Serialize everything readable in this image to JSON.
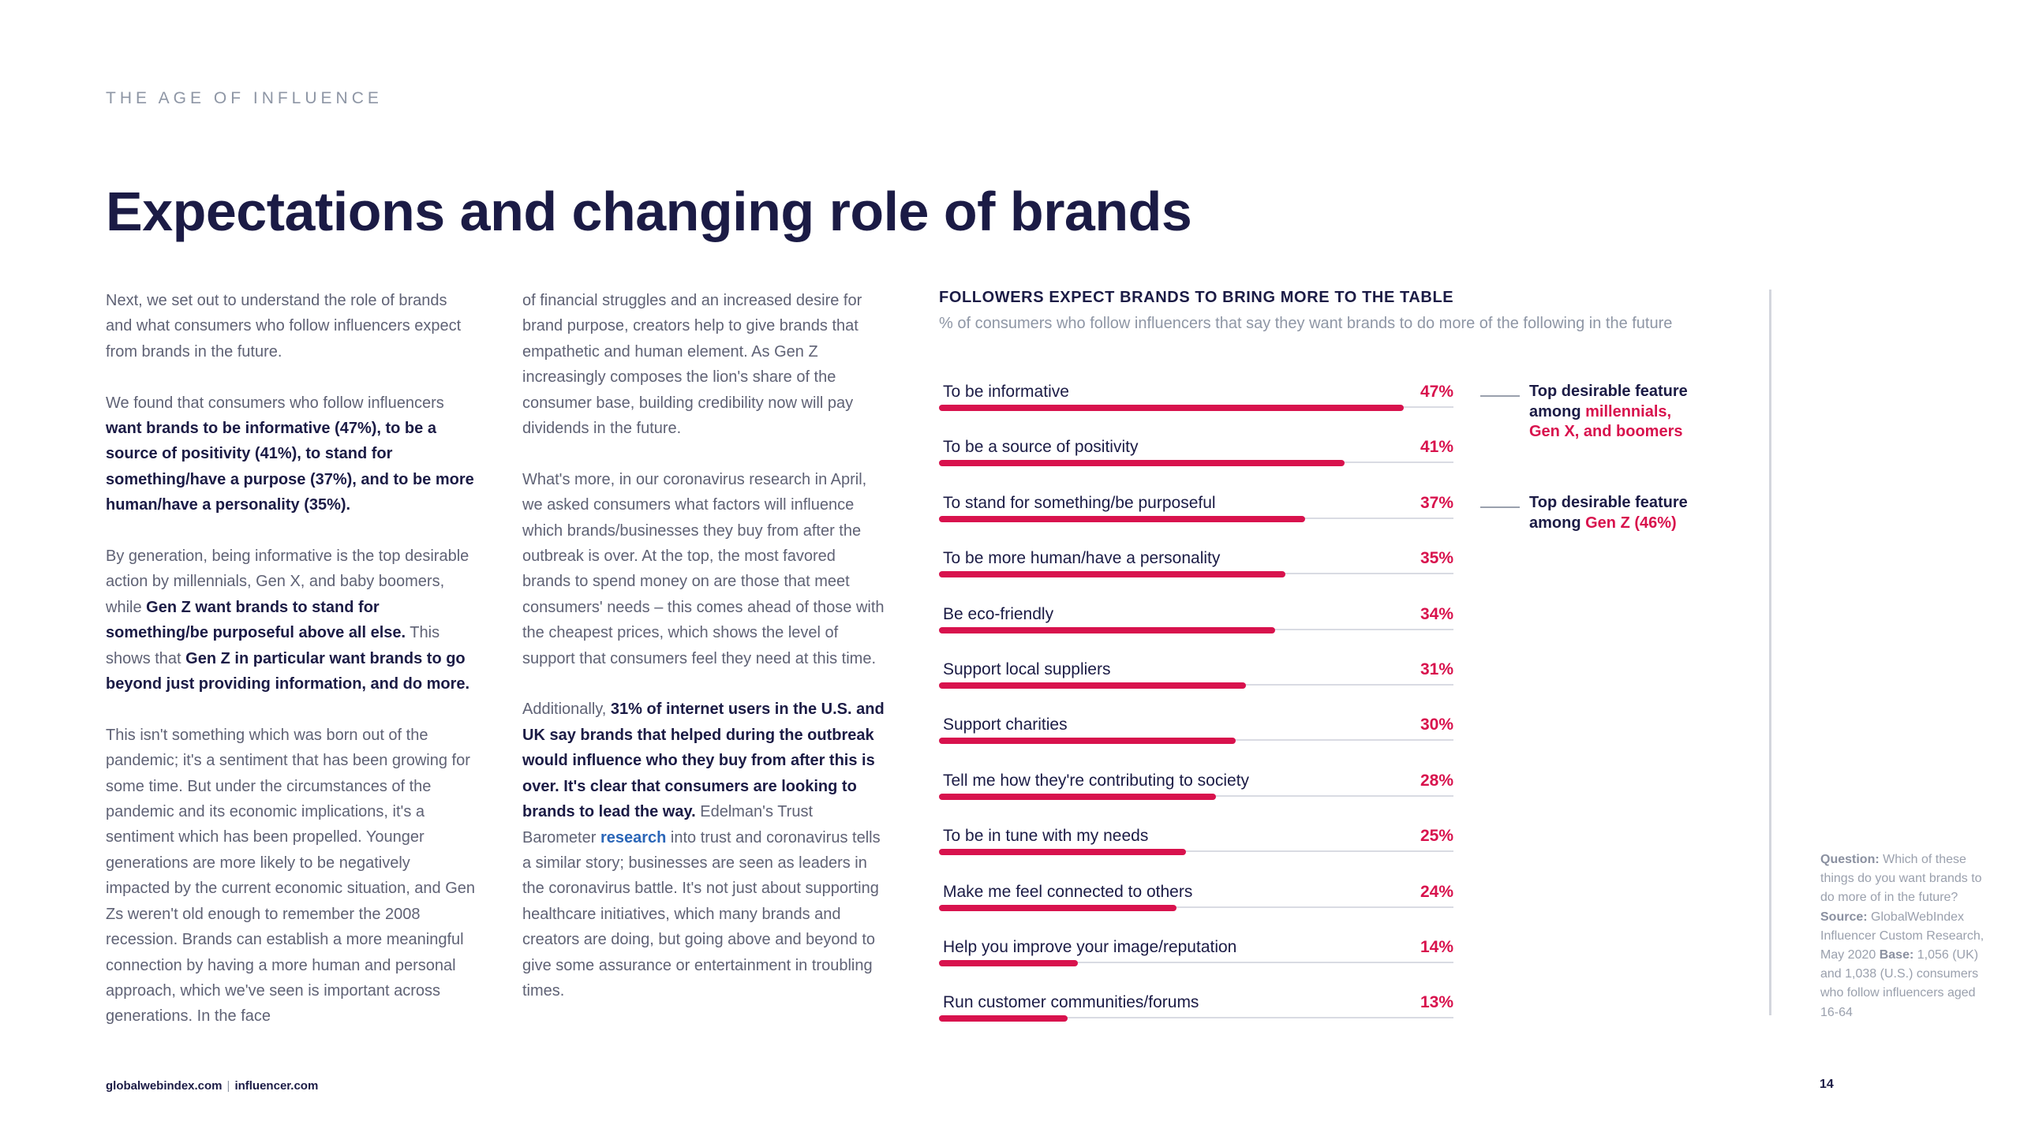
{
  "header": {
    "eyebrow": "THE AGE OF INFLUENCE",
    "title": "Expectations and changing role of brands"
  },
  "column1": {
    "p1": "Next, we set out to understand the role of brands and what consumers who follow influencers expect from brands in the future.",
    "p2_lead": "We found that consumers who follow influencers ",
    "p2_bold": "want brands to be informative (47%), to be a source of positivity (41%), to stand for something/have a purpose (37%), and to be more human/have a personality (35%).",
    "p3_a": "By generation, being informative is the top desirable action by millennials, Gen X, and baby boomers, while ",
    "p3_b": "Gen Z want brands to stand for something/be purposeful above all else.",
    "p3_c": " This shows that ",
    "p3_d": "Gen Z in particular want brands to go beyond just providing information, and do more.",
    "p4": "This isn't something which was born out of the pandemic; it's a sentiment that has been growing for some time. But under the circumstances of the pandemic and its economic implications, it's a sentiment which has been propelled. Younger generations are more likely to be negatively impacted by the current economic situation, and Gen Zs weren't old enough to remember the 2008 recession. Brands can establish a more meaningful connection by having a more human and personal approach, which we've seen is important across generations. In the face"
  },
  "column2": {
    "p1": "of financial struggles and an increased desire for brand purpose, creators help to give brands that empathetic and human element. As Gen Z increasingly composes the lion's share of the consumer base, building credibility now will pay dividends in the future.",
    "p2": "What's more, in our coronavirus research in April, we asked consumers what factors will influence which brands/businesses they buy from after the outbreak is over. At the top, the most favored brands to spend money on are those that meet consumers' needs – this comes ahead of those with the cheapest prices, which shows the level of support that consumers feel they need at this time.",
    "p3_a": "Additionally, ",
    "p3_b": "31% of internet users in the U.S. and UK say brands that helped during the outbreak would influence who they buy from after this is over. It's clear that consumers are looking to brands to lead the way.",
    "p3_c": " Edelman's Trust Barometer ",
    "p3_link": "research",
    "p3_d": " into trust and coronavirus tells a similar story; businesses are seen as leaders in the coronavirus battle. It's not just about supporting healthcare initiatives, which many brands and creators are doing, but going above and beyond to give some assurance or entertainment in troubling times."
  },
  "chart_data": {
    "type": "bar",
    "orientation": "horizontal",
    "title": "FOLLOWERS EXPECT BRANDS TO BRING MORE TO THE TABLE",
    "subtitle": "% of consumers who follow influencers that say they want brands to do more of the following in the future",
    "categories": [
      "To be informative",
      "To be a source of positivity",
      "To stand for something/be purposeful",
      "To be more human/have a personality",
      "Be eco-friendly",
      "Support local suppliers",
      "Support charities",
      "Tell me how they're contributing to society",
      "To be in tune with my needs",
      "Make me feel connected to others",
      "Help you improve your image/reputation",
      "Run customer communities/forums"
    ],
    "values": [
      47,
      41,
      37,
      35,
      34,
      31,
      30,
      28,
      25,
      24,
      14,
      13
    ],
    "value_labels": [
      "47%",
      "41%",
      "37%",
      "35%",
      "34%",
      "31%",
      "30%",
      "28%",
      "25%",
      "24%",
      "14%",
      "13%"
    ],
    "unit": "%",
    "xlim": [
      0,
      52
    ],
    "color": "#d8124d"
  },
  "annotations": {
    "a1_line1": "Top desirable feature",
    "a1_line2_prefix": "among ",
    "a1_line2_hl": "millennials,",
    "a1_line3_hl": "Gen X, and boomers",
    "a2_line1": "Top desirable feature",
    "a2_line2_prefix": "among ",
    "a2_line2_hl": "Gen Z (46%)"
  },
  "source_note": {
    "question_label": "Question:",
    "question": " Which of these things do you want brands to do more of in the future? ",
    "source_label": "Source:",
    "source": " GlobalWebIndex Influencer Custom Research, May 2020 ",
    "base_label": "Base:",
    "base": " 1,056 (UK) and 1,038 (U.S.) consumers who follow influencers aged 16-64"
  },
  "footer": {
    "site1": "globalwebindex.com",
    "separator": "|",
    "site2": "influencer.com",
    "page_number": "14"
  }
}
